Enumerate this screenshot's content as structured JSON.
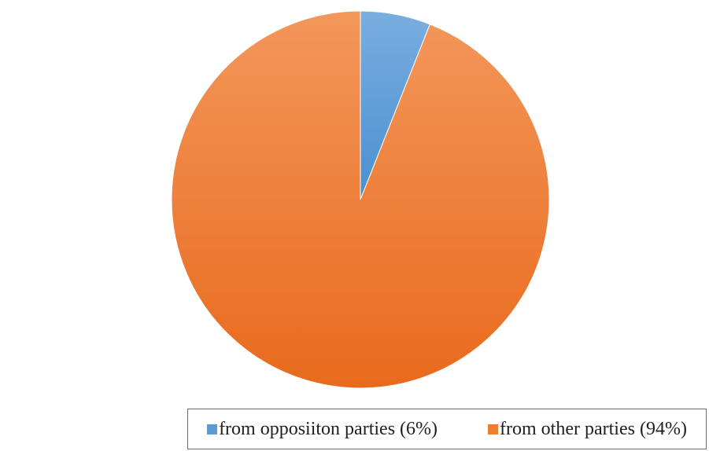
{
  "chart_data": {
    "type": "pie",
    "title": "",
    "slices": [
      {
        "label": "from oppositon parties (6%)",
        "value": 6,
        "color": "#5b9bd5"
      },
      {
        "label": "from other parties (94%)",
        "value": 94,
        "color": "#ed7d31"
      }
    ],
    "legend": {
      "position": "bottom",
      "items": [
        {
          "label": "from opposiiton parties (6%)",
          "color": "#5b9bd5"
        },
        {
          "label": "from other parties (94%)",
          "color": "#ed7d31"
        }
      ]
    }
  }
}
